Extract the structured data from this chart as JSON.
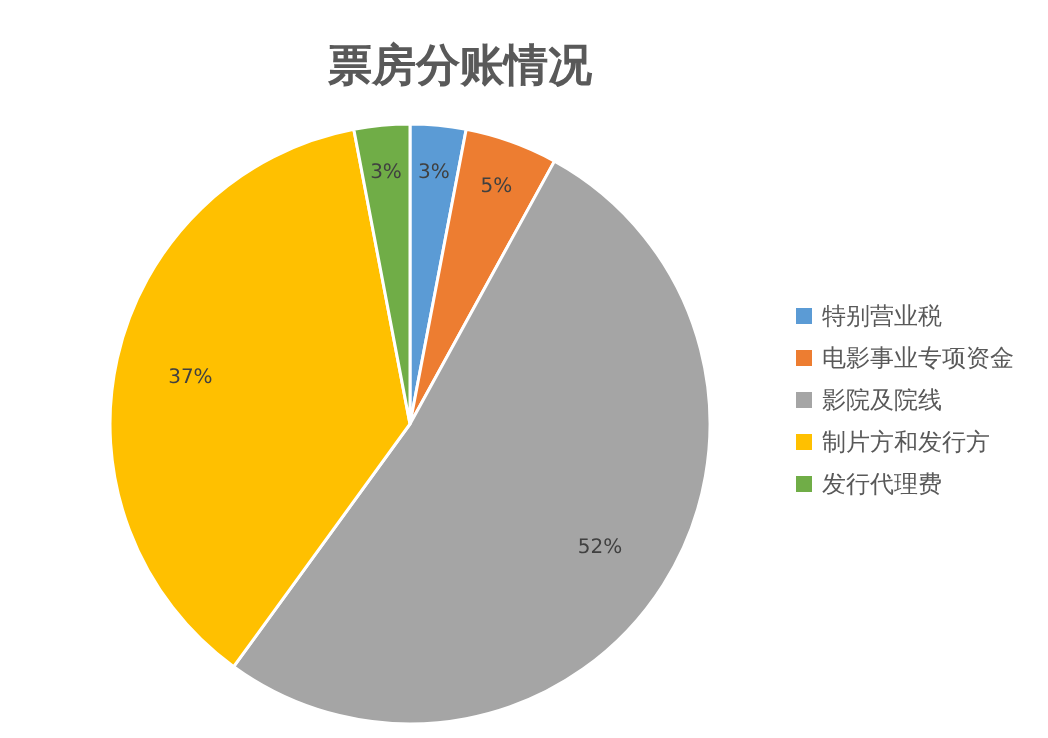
{
  "chart_data": {
    "type": "pie",
    "title": "票房分账情况",
    "categories": [
      "特别营业税",
      "电影事业专项资金",
      "影院及院线",
      "制片方和发行方",
      "发行代理费"
    ],
    "values": [
      3,
      5,
      52,
      37,
      3
    ],
    "colors": [
      "#5b9bd5",
      "#ed7d31",
      "#a5a5a5",
      "#ffc000",
      "#70ad47"
    ],
    "value_labels": [
      "3%",
      "5%",
      "52%",
      "37%",
      "3%"
    ],
    "legend": "right"
  }
}
